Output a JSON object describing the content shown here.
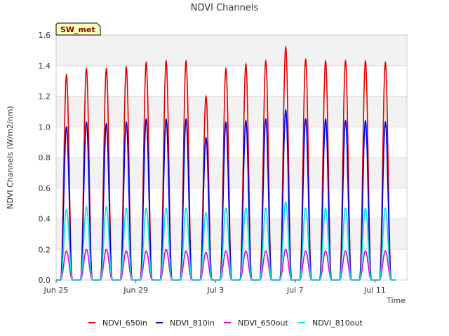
{
  "chart_data": {
    "type": "line",
    "title": "NDVI Channels",
    "xlabel": "Time",
    "ylabel": "NDVI Channels (W/m2/nm)",
    "xlim": [
      0,
      17.6
    ],
    "ylim": [
      0,
      1.6
    ],
    "yticks": [
      0.0,
      0.2,
      0.4,
      0.6,
      0.8,
      1.0,
      1.2,
      1.4,
      1.6
    ],
    "ytick_labels": [
      "0.0",
      "0.2",
      "0.4",
      "0.6",
      "0.8",
      "1.0",
      "1.2",
      "1.4",
      "1.6"
    ],
    "xticks": [
      0,
      4,
      8,
      12,
      16
    ],
    "xtick_labels": [
      "Jun 25",
      "Jun 29",
      "Jul 3",
      "Jul 7",
      "Jul 11"
    ],
    "x_units": "days since Jun 25",
    "grid": "horizontal bands",
    "legend_position": "bottom",
    "annotation": "SW_met",
    "days": [
      "Jun 25",
      "Jun 26",
      "Jun 27",
      "Jun 28",
      "Jun 29",
      "Jun 30",
      "Jul 1",
      "Jul 2",
      "Jul 3",
      "Jul 4",
      "Jul 5",
      "Jul 6",
      "Jul 7",
      "Jul 8",
      "Jul 9",
      "Jul 10",
      "Jul 11",
      "Jul 12"
    ],
    "series": [
      {
        "name": "NDVI_650in",
        "color": "#e00000",
        "daily_peaks": [
          1.34,
          1.38,
          1.38,
          1.39,
          1.42,
          1.43,
          1.43,
          1.2,
          1.38,
          1.41,
          1.43,
          1.52,
          1.44,
          1.43,
          1.43,
          1.43,
          1.42
        ]
      },
      {
        "name": "NDVI_810in",
        "color": "#0000dd",
        "daily_peaks": [
          1.0,
          1.03,
          1.02,
          1.03,
          1.05,
          1.05,
          1.05,
          0.93,
          1.03,
          1.04,
          1.05,
          1.11,
          1.05,
          1.05,
          1.04,
          1.04,
          1.03
        ]
      },
      {
        "name": "NDVI_650out",
        "color": "#dd00dd",
        "daily_peaks": [
          0.19,
          0.2,
          0.2,
          0.19,
          0.19,
          0.2,
          0.19,
          0.18,
          0.19,
          0.19,
          0.19,
          0.2,
          0.19,
          0.19,
          0.19,
          0.19,
          0.19
        ]
      },
      {
        "name": "NDVI_810out",
        "color": "#00e5e5",
        "daily_peaks": [
          0.46,
          0.48,
          0.48,
          0.47,
          0.47,
          0.47,
          0.47,
          0.44,
          0.47,
          0.47,
          0.47,
          0.51,
          0.47,
          0.47,
          0.47,
          0.47,
          0.47
        ]
      }
    ]
  }
}
